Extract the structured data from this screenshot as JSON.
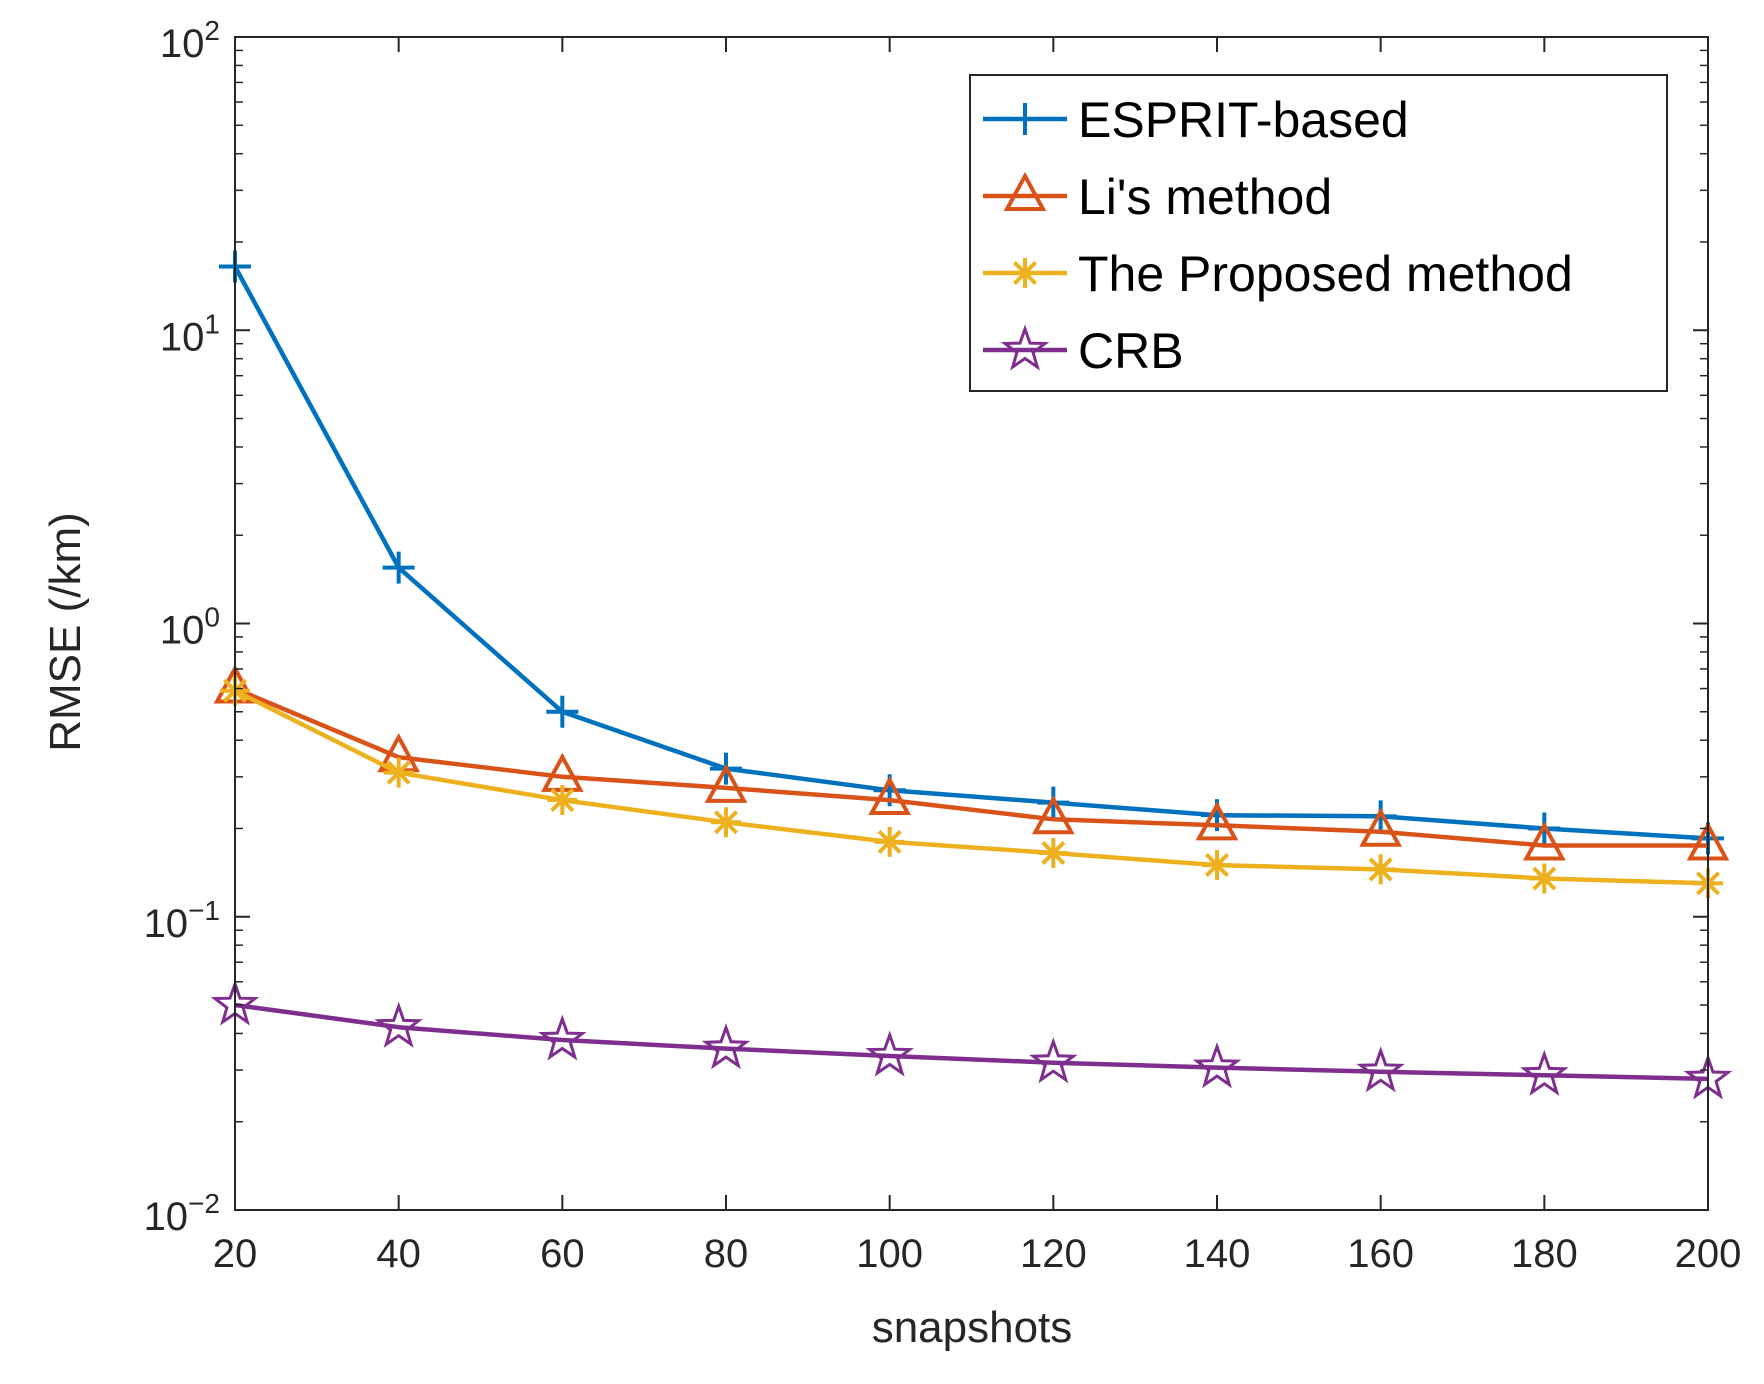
{
  "chart_data": {
    "type": "line",
    "title": "",
    "xlabel": "snapshots",
    "ylabel": "RMSE (/km)",
    "x": [
      20,
      40,
      60,
      80,
      100,
      120,
      140,
      160,
      180,
      200
    ],
    "xlim": [
      20,
      200
    ],
    "ylim": [
      0.01,
      100
    ],
    "yscale": "log",
    "grid": false,
    "legend_position": "top-right",
    "x_ticks": [
      {
        "value": 20,
        "label": "20"
      },
      {
        "value": 40,
        "label": "40"
      },
      {
        "value": 60,
        "label": "60"
      },
      {
        "value": 80,
        "label": "80"
      },
      {
        "value": 100,
        "label": "100"
      },
      {
        "value": 120,
        "label": "120"
      },
      {
        "value": 140,
        "label": "140"
      },
      {
        "value": 160,
        "label": "160"
      },
      {
        "value": 180,
        "label": "180"
      },
      {
        "value": 200,
        "label": "200"
      }
    ],
    "y_ticks": [
      {
        "value": 100,
        "base": "10",
        "exp": "2"
      },
      {
        "value": 10,
        "base": "10",
        "exp": "1"
      },
      {
        "value": 1,
        "base": "10",
        "exp": "0"
      },
      {
        "value": 0.1,
        "base": "10",
        "exp": "−1"
      },
      {
        "value": 0.01,
        "base": "10",
        "exp": "−2"
      }
    ],
    "series": [
      {
        "name": "ESPRIT-based",
        "color": "#0072BD",
        "marker": "plus",
        "values": [
          16.5,
          1.55,
          0.5,
          0.32,
          0.27,
          0.245,
          0.222,
          0.22,
          0.2,
          0.185
        ]
      },
      {
        "name": "Li's method",
        "color": "#D95319",
        "marker": "triangle",
        "values": [
          0.6,
          0.35,
          0.3,
          0.275,
          0.25,
          0.215,
          0.205,
          0.195,
          0.175,
          0.175
        ]
      },
      {
        "name": "The Proposed method",
        "color": "#EDB120",
        "marker": "asterisk",
        "values": [
          0.59,
          0.31,
          0.25,
          0.21,
          0.18,
          0.165,
          0.15,
          0.145,
          0.135,
          0.13
        ]
      },
      {
        "name": "CRB",
        "color": "#7E2F8E",
        "marker": "star",
        "values": [
          0.05,
          0.042,
          0.038,
          0.0355,
          0.0335,
          0.0318,
          0.0306,
          0.0296,
          0.0288,
          0.028
        ]
      }
    ]
  }
}
